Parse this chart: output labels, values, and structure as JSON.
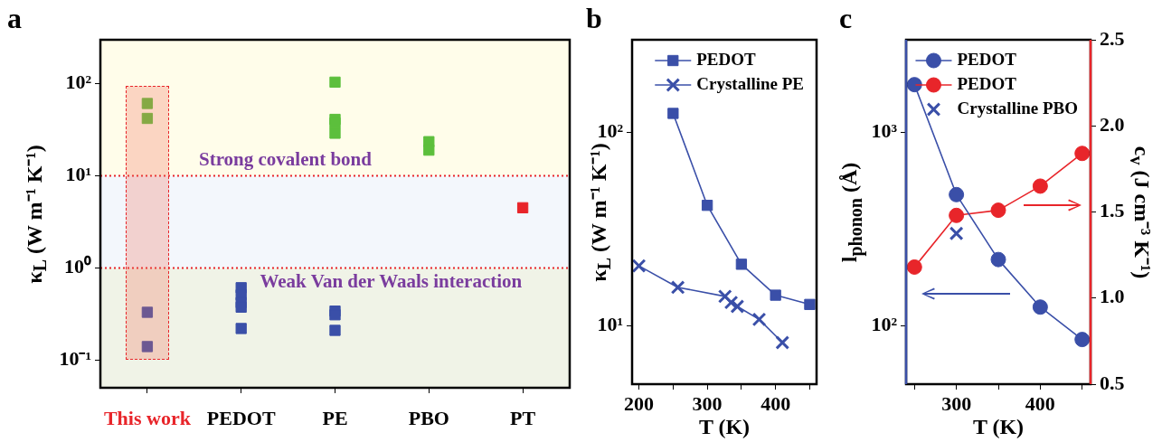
{
  "chart_data": [
    {
      "title": "a",
      "type": "scatter",
      "marker": "square",
      "categories": [
        "This work",
        "PEDOT",
        "PE",
        "PBO",
        "PT"
      ],
      "ylabel": "κ$_{L}$ (W m⁻¹ K⁻¹)",
      "log": true,
      "ylim": [
        0.05,
        300
      ],
      "yticks": [
        {
          "value": 0.1,
          "label": "10⁻¹"
        },
        {
          "value": 1,
          "label": "10⁰"
        },
        {
          "value": 10,
          "label": "10¹"
        },
        {
          "value": 100,
          "label": "10²"
        }
      ],
      "series": [
        {
          "color": "#5cbf3c",
          "x": [
            "This work",
            "This work",
            "PE",
            "PE",
            "PE",
            "PE",
            "PBO",
            "PBO"
          ],
          "values": [
            61,
            42,
            104,
            41,
            37.5,
            29,
            23.5,
            19
          ]
        },
        {
          "color": "#3a4fa8",
          "x": [
            "This work",
            "This work",
            "PEDOT",
            "PEDOT",
            "PEDOT",
            "PEDOT",
            "PEDOT",
            "PE",
            "PE",
            "PE"
          ],
          "values": [
            0.33,
            0.14,
            0.61,
            0.51,
            0.42,
            0.375,
            0.22,
            0.34,
            0.31,
            0.21
          ]
        },
        {
          "color": "#e8252a",
          "x": [
            "PT"
          ],
          "values": [
            4.5
          ]
        }
      ],
      "bands": [
        {
          "axis": "y",
          "from": 10,
          "to": 300,
          "label": "Strong covalent bond",
          "color": "#fffdea"
        },
        {
          "axis": "y",
          "from": 1,
          "to": 10,
          "color": "#f3f7fc"
        },
        {
          "axis": "y",
          "from": 0.05,
          "to": 1,
          "label": "Weak Van der Waals interaction",
          "color": "#f0f3e7"
        }
      ],
      "ref_lines": [
        {
          "axis": "y",
          "value": 10,
          "color": "#e8252a",
          "line_style": "dotted"
        },
        {
          "axis": "y",
          "value": 1,
          "color": "#e8252a",
          "line_style": "dotted"
        }
      ]
    },
    {
      "title": "b",
      "type": "line",
      "xlabel": "T (K)",
      "ylabel": "κ$_{L}$ (W m⁻¹ K⁻¹)",
      "log": true,
      "xlim": [
        190,
        460
      ],
      "xticks": [
        200,
        {
          "value": 250,
          "label": null
        },
        300,
        {
          "value": 350,
          "label": null
        },
        400,
        {
          "value": 450,
          "label": null
        }
      ],
      "ylim": [
        5,
        300
      ],
      "yticks": [
        {
          "value": 10,
          "label": "10¹"
        },
        {
          "value": 100,
          "label": "10²"
        }
      ],
      "legend": "top right",
      "series": [
        {
          "name": "PEDOT",
          "color": "#3a4fa8",
          "marker": "square",
          "x": [
            250,
            300,
            350,
            400,
            450
          ],
          "values": [
            125,
            41.9,
            20.8,
            14.4,
            12.9
          ]
        },
        {
          "name": "Crystalline PE",
          "color": "#3a4fa8",
          "marker": "cross",
          "x": [
            200,
            257,
            326,
            335,
            344,
            376,
            410
          ],
          "values": [
            20.4,
            15.8,
            14.2,
            13.2,
            12.6,
            10.8,
            8.2
          ]
        }
      ]
    },
    {
      "title": "c",
      "type": "line",
      "xlabel": "T (K)",
      "ylabel": "l$_{phonon}$ (Å)",
      "y2label": "c$_{v}$ (J cm⁻³ K⁻¹)",
      "log": true,
      "xlim": [
        240,
        460
      ],
      "xticks": [
        {
          "value": 250,
          "label": null
        },
        300,
        {
          "value": 350,
          "label": null
        },
        400,
        {
          "value": 450,
          "label": null
        }
      ],
      "ylim": [
        50,
        3000
      ],
      "yticks": [
        {
          "value": 100,
          "label": "10²"
        },
        {
          "value": 1000,
          "label": "10³"
        }
      ],
      "y2lim": [
        0.5,
        2.5
      ],
      "y2ticks": [
        0.5,
        {
          "value": 1,
          "label": "1.0"
        },
        1.5,
        {
          "value": 2,
          "label": "2.0"
        },
        2.5
      ],
      "legend": "top right",
      "series": [
        {
          "name": "PEDOT",
          "color": "#3a4fa8",
          "marker": "circle",
          "x": [
            250,
            300,
            350,
            400,
            450
          ],
          "values": [
            1760,
            476,
            220,
            125,
            85
          ]
        },
        {
          "name": "PEDOT",
          "color": "#e8252a",
          "marker": "circle",
          "axis": "y2",
          "x": [
            250,
            300,
            350,
            400,
            450
          ],
          "values": [
            1.18,
            1.48,
            1.51,
            1.65,
            1.84
          ]
        },
        {
          "name": "Crystalline PBO",
          "type": "scatter",
          "color": "#3a4fa8",
          "marker": "cross",
          "x": [
            300
          ],
          "values": [
            300
          ]
        }
      ]
    }
  ]
}
